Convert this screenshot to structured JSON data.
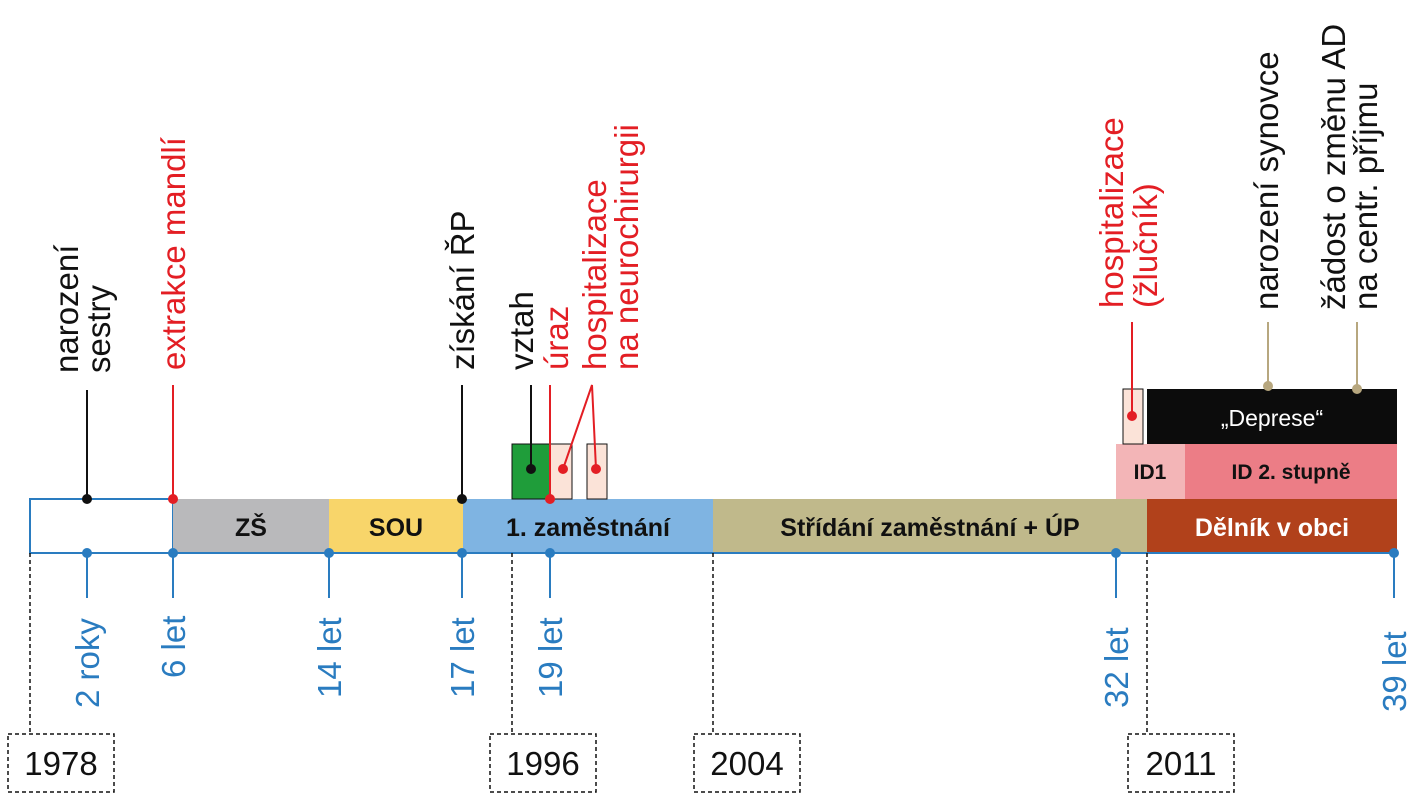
{
  "colors": {
    "black": "#111111",
    "red": "#e31e24",
    "blue": "#2a7cc0",
    "tan": "#b7a77f",
    "pink_light": "#fbe3d8",
    "green": "#1f9d3a",
    "zs": "#b9b9bb",
    "sou": "#f8d56a",
    "job1": "#7fb4e2",
    "alternating": "#c0b98b",
    "worker": "#b1411b",
    "id1": "#f3b5b7",
    "id2": "#ec7d86",
    "depression": "#0c0c0c"
  },
  "life_segments": [
    {
      "label": "",
      "color": "#ffffff",
      "text_color": "#111111"
    },
    {
      "label": "ZŠ",
      "color": "#b9b9bb",
      "text_color": "#111111"
    },
    {
      "label": "SOU",
      "color": "#f8d56a",
      "text_color": "#111111"
    },
    {
      "label": "1. zaměstnání",
      "color": "#7fb4e2",
      "text_color": "#111111"
    },
    {
      "label": "Střídání zaměstnání + ÚP",
      "color": "#c0b98b",
      "text_color": "#111111"
    },
    {
      "label": "Dělník v obci",
      "color": "#b1411b",
      "text_color": "#ffffff"
    }
  ],
  "id_segments": [
    {
      "label": "ID1",
      "color": "#f3b5b7"
    },
    {
      "label": "ID 2. stupně",
      "color": "#ec7d86"
    }
  ],
  "depression": {
    "label": "„Deprese“"
  },
  "ages": [
    "2 roky",
    "6 let",
    "14 let",
    "17 let",
    "19 let",
    "32 let",
    "39 let"
  ],
  "years": [
    "1978",
    "1996",
    "2004",
    "2011"
  ],
  "events": [
    {
      "lines": [
        "narození",
        "sestry"
      ],
      "color": "#111111"
    },
    {
      "lines": [
        "extrakce mandlí"
      ],
      "color": "#e31e24"
    },
    {
      "lines": [
        "získání ŘP"
      ],
      "color": "#111111"
    },
    {
      "lines": [
        "vztah"
      ],
      "color": "#111111"
    },
    {
      "lines": [
        "úraz"
      ],
      "color": "#e31e24"
    },
    {
      "lines": [
        "hospitalizace",
        "na neurochirurgii"
      ],
      "color": "#e31e24"
    },
    {
      "lines": [
        "hospitalizace",
        "(žlučník)"
      ],
      "color": "#e31e24"
    },
    {
      "lines": [
        "narození synovce"
      ],
      "color": "#111111"
    },
    {
      "lines": [
        "žádost o změnu AD",
        "na centr. příjmu"
      ],
      "color": "#111111"
    }
  ]
}
